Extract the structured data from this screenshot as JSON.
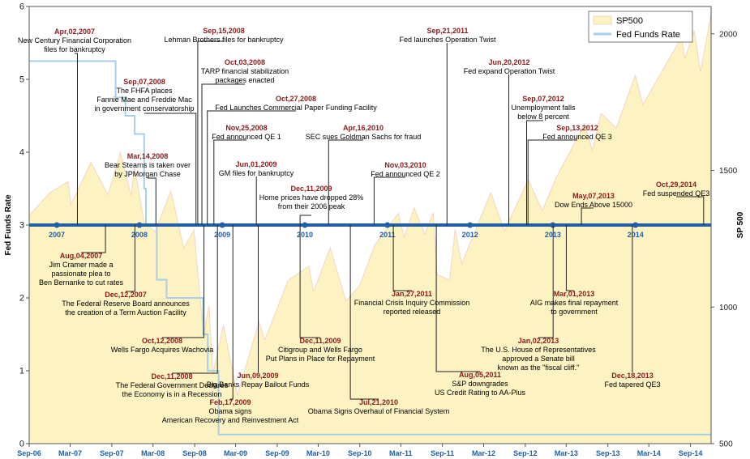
{
  "chart_data": {
    "type": "line",
    "title": "",
    "left_axis": {
      "label": "Fed Funds Rate",
      "ticks": [
        0,
        1,
        2,
        3,
        4,
        5,
        6
      ],
      "range": [
        0,
        6
      ]
    },
    "right_axis": {
      "label": "SP 500",
      "ticks": [
        500,
        1000,
        1500,
        2000
      ],
      "range": [
        500,
        2100
      ]
    },
    "x_axis": {
      "range": [
        "2006-09-01",
        "2014-12-01"
      ],
      "bottom_ticks": [
        "Sep-06",
        "Mar-07",
        "Sep-07",
        "Mar-08",
        "Sep-08",
        "Mar-09",
        "Sep-09",
        "Mar-10",
        "Sep-10",
        "Mar-11",
        "Sep-11",
        "Mar-12",
        "Sep-12",
        "Mar-13",
        "Sep-13",
        "Mar-14",
        "Sep-14"
      ],
      "bottom_tick_dates": [
        "2006-09-01",
        "2007-03-01",
        "2007-09-01",
        "2008-03-01",
        "2008-09-01",
        "2009-03-01",
        "2009-09-01",
        "2010-03-01",
        "2010-09-01",
        "2011-03-01",
        "2011-09-01",
        "2012-03-01",
        "2012-09-01",
        "2013-03-01",
        "2013-09-01",
        "2014-03-01",
        "2014-09-01"
      ],
      "year_labels": [
        "2007",
        "2008",
        "2009",
        "2010",
        "2011",
        "2012",
        "2013",
        "2014"
      ],
      "year_label_dates": [
        "2007-01-01",
        "2008-01-01",
        "2009-01-01",
        "2010-01-01",
        "2011-01-01",
        "2012-01-01",
        "2013-01-01",
        "2014-01-01"
      ]
    },
    "legend": {
      "placement": "top-right",
      "entries": [
        "SP500",
        "Fed Funds Rate"
      ]
    },
    "grid": false,
    "series": [
      {
        "name": "SP500",
        "axis": "right",
        "style": "area",
        "color": "#fdf3c2",
        "points": [
          [
            "2006-09-01",
            1335
          ],
          [
            "2006-12-01",
            1418
          ],
          [
            "2007-02-20",
            1459
          ],
          [
            "2007-03-05",
            1375
          ],
          [
            "2007-06-01",
            1530
          ],
          [
            "2007-08-15",
            1410
          ],
          [
            "2007-10-09",
            1565
          ],
          [
            "2007-11-26",
            1407
          ],
          [
            "2007-12-10",
            1515
          ],
          [
            "2008-01-22",
            1310
          ],
          [
            "2008-03-10",
            1275
          ],
          [
            "2008-05-19",
            1425
          ],
          [
            "2008-07-15",
            1215
          ],
          [
            "2008-08-29",
            1282
          ],
          [
            "2008-10-10",
            900
          ],
          [
            "2008-11-04",
            1005
          ],
          [
            "2008-11-20",
            752
          ],
          [
            "2009-01-06",
            934
          ],
          [
            "2009-03-09",
            677
          ],
          [
            "2009-06-12",
            946
          ],
          [
            "2009-07-08",
            880
          ],
          [
            "2009-10-19",
            1097
          ],
          [
            "2010-01-19",
            1150
          ],
          [
            "2010-02-08",
            1056
          ],
          [
            "2010-04-23",
            1217
          ],
          [
            "2010-07-02",
            1022
          ],
          [
            "2010-09-01",
            1080
          ],
          [
            "2010-11-05",
            1225
          ],
          [
            "2011-02-18",
            1343
          ],
          [
            "2011-03-16",
            1256
          ],
          [
            "2011-04-29",
            1363
          ],
          [
            "2011-06-15",
            1266
          ],
          [
            "2011-07-22",
            1345
          ],
          [
            "2011-08-08",
            1119
          ],
          [
            "2011-10-03",
            1099
          ],
          [
            "2011-10-27",
            1284
          ],
          [
            "2011-11-25",
            1158
          ],
          [
            "2012-04-02",
            1419
          ],
          [
            "2012-06-01",
            1278
          ],
          [
            "2012-09-14",
            1466
          ],
          [
            "2012-11-15",
            1353
          ],
          [
            "2013-01-15",
            1472
          ],
          [
            "2013-05-21",
            1669
          ],
          [
            "2013-06-24",
            1573
          ],
          [
            "2013-08-02",
            1709
          ],
          [
            "2013-10-08",
            1655
          ],
          [
            "2013-12-31",
            1848
          ],
          [
            "2014-02-03",
            1741
          ],
          [
            "2014-07-24",
            1988
          ],
          [
            "2014-08-07",
            1910
          ],
          [
            "2014-09-18",
            2011
          ],
          [
            "2014-10-15",
            1862
          ],
          [
            "2014-12-01",
            2070
          ]
        ]
      },
      {
        "name": "Fed Funds Rate",
        "axis": "left",
        "style": "step-line",
        "color": "#a9cfe8",
        "points": [
          [
            "2006-09-01",
            5.25
          ],
          [
            "2007-09-18",
            4.75
          ],
          [
            "2007-10-31",
            4.5
          ],
          [
            "2007-12-11",
            4.25
          ],
          [
            "2008-01-22",
            3.5
          ],
          [
            "2008-01-30",
            3.0
          ],
          [
            "2008-03-18",
            2.25
          ],
          [
            "2008-04-30",
            2.0
          ],
          [
            "2008-10-08",
            1.5
          ],
          [
            "2008-10-29",
            1.0
          ],
          [
            "2008-12-16",
            0.125
          ],
          [
            "2014-12-01",
            0.125
          ]
        ]
      }
    ],
    "annotations": [
      {
        "date": "Apr,02,2007",
        "text": [
          "New Century Financial Corporation",
          "files for bankruptcy"
        ],
        "x_date": "2007-04-02",
        "side": "top"
      },
      {
        "date": "Sep,07,2008",
        "text": [
          "The FHFA places",
          "Fannie Mae and Freddie Mac",
          "in government conservatorship"
        ],
        "x_date": "2008-09-07",
        "side": "top"
      },
      {
        "date": "Sep,15,2008",
        "text": [
          "Lehman Brothers files for bankruptcy"
        ],
        "x_date": "2008-09-15",
        "side": "top"
      },
      {
        "date": "Oct,03,2008",
        "text": [
          "TARP financial stabilization",
          "packages enacted"
        ],
        "x_date": "2008-10-03",
        "side": "top"
      },
      {
        "date": "Oct,27,2008",
        "text": [
          "Fed Launches Commercial Paper Funding Facility"
        ],
        "x_date": "2008-10-27",
        "side": "top"
      },
      {
        "date": "Mar,14,2008",
        "text": [
          "Bear Stearns is taken over",
          "by JPMorgan Chase"
        ],
        "x_date": "2008-03-14",
        "side": "top"
      },
      {
        "date": "Nov,25,2008",
        "text": [
          "Fed announced QE 1"
        ],
        "x_date": "2008-11-25",
        "side": "top"
      },
      {
        "date": "Jun,01,2009",
        "text": [
          "GM files for bankruptcy"
        ],
        "x_date": "2009-06-01",
        "side": "top"
      },
      {
        "date": "Dec,11,2009",
        "text": [
          "Home prices have dropped 28%",
          "from their 2006 peak"
        ],
        "x_date": "2009-12-11",
        "side": "top"
      },
      {
        "date": "Apr,16,2010",
        "text": [
          "SEC sues Goldman Sachs for fraud"
        ],
        "x_date": "2010-04-16",
        "side": "top"
      },
      {
        "date": "Nov,03,2010",
        "text": [
          "Fed announced QE 2"
        ],
        "x_date": "2010-11-03",
        "side": "top"
      },
      {
        "date": "Sep,21,2011",
        "text": [
          "Fed launches Operation Twist"
        ],
        "x_date": "2011-09-21",
        "side": "top"
      },
      {
        "date": "Jun,20,2012",
        "text": [
          "Fed expand  Operation Twist"
        ],
        "x_date": "2012-06-20",
        "side": "top"
      },
      {
        "date": "Sep,07,2012",
        "text": [
          "Unemployment falls",
          "below 8 percent"
        ],
        "x_date": "2012-09-07",
        "side": "top"
      },
      {
        "date": "Sep,13,2012",
        "text": [
          "Fed announced QE 3"
        ],
        "x_date": "2012-09-13",
        "side": "top"
      },
      {
        "date": "May,07,2013",
        "text": [
          "Dow Ends Above 15000"
        ],
        "x_date": "2013-05-07",
        "side": "top"
      },
      {
        "date": "Oct,29,2014",
        "text": [
          "Fed suspended QE3"
        ],
        "x_date": "2014-10-29",
        "side": "top"
      },
      {
        "date": "Aug,04,2007",
        "text": [
          "Jim Cramer made a",
          "passionate plea to",
          "Ben Bernanke to cut rates"
        ],
        "x_date": "2007-08-04",
        "side": "bottom"
      },
      {
        "date": "Dec,12,2007",
        "text": [
          "The Federal Reserve Board announces",
          "the creation of a Term Auction Facility"
        ],
        "x_date": "2007-12-12",
        "side": "bottom"
      },
      {
        "date": "Oct,12,2008",
        "text": [
          "Wells Fargo Acquires Wachovia"
        ],
        "x_date": "2008-10-12",
        "side": "bottom"
      },
      {
        "date": "Dec,11,2008",
        "text": [
          "The Federal Government Declares",
          "the Economy is in a Recession"
        ],
        "x_date": "2008-12-11",
        "side": "bottom"
      },
      {
        "date": "Feb,17,2009",
        "text": [
          "Obama signs",
          "American Recovery and Reinvestment Act"
        ],
        "x_date": "2009-02-17",
        "side": "bottom"
      },
      {
        "date": "Jun,09,2009",
        "text": [
          "Big Banks Repay Bailout Funds"
        ],
        "x_date": "2009-06-09",
        "side": "bottom"
      },
      {
        "date": "Dec,11,2009",
        "text": [
          "Citigroup and Wells Fargo",
          "Put Plans in Place for Repayment"
        ],
        "x_date": "2009-12-11",
        "side": "bottom"
      },
      {
        "date": "Jul,21,2010",
        "text": [
          "Obama Signs Overhaul of Financial System"
        ],
        "x_date": "2010-07-21",
        "side": "bottom"
      },
      {
        "date": "Jan,27,2011",
        "text": [
          "Financial Crisis Inquiry Commission",
          "reported released"
        ],
        "x_date": "2011-01-27",
        "side": "bottom"
      },
      {
        "date": "Aug,05,2011",
        "text": [
          "S&P downgrades",
          "US Credit Rating to AA-Plus"
        ],
        "x_date": "2011-08-05",
        "side": "bottom"
      },
      {
        "date": "Jan,02,2013",
        "text": [
          "The U.S. House of Representatives",
          "approved a Senate bill",
          "known as the \"fiscal cliff.\""
        ],
        "x_date": "2013-01-02",
        "side": "bottom"
      },
      {
        "date": "Mar,01,2013",
        "text": [
          "AIG makes final repayment",
          "to government"
        ],
        "x_date": "2013-03-01",
        "side": "bottom"
      },
      {
        "date": "Dec,18,2013",
        "text": [
          "Fed tapered QE3"
        ],
        "x_date": "2013-12-18",
        "side": "bottom"
      }
    ]
  },
  "colors": {
    "annotation_date": "#8b1a1a",
    "annotation_text": "#000000",
    "axis_band": "#1f5fa8",
    "year_label": "#1f5fa8",
    "sp500_fill": "#fdf3c2",
    "sp500_stroke": "#f3d6c4",
    "fed_funds_line": "#a9cfe8"
  }
}
